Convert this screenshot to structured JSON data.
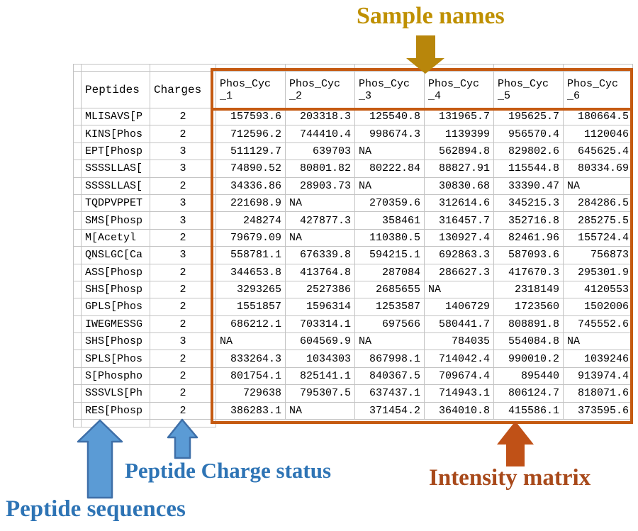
{
  "annotations": {
    "sample_names": "Sample names",
    "peptide_charge_status": "Peptide Charge status",
    "peptide_sequences": "Peptide sequences",
    "intensity_matrix": "Intensity matrix"
  },
  "colors": {
    "sample_names_text": "#BF9000",
    "gold_arrow": "#B8860B",
    "header_highlight_bg": "#FFFF00",
    "left_header_bg": "#9FC3E6",
    "matrix_outline": "#C55A11",
    "blue_arrow_fill": "#5B9BD5",
    "blue_arrow_outline": "#3E6FA8",
    "blue_label_text": "#2E74B5",
    "intensity_label_text": "#A8491A",
    "orange_arrow_fill": "#C05117",
    "grid_line": "#C3C3C3"
  },
  "table": {
    "corner_headers": [
      "Peptides",
      "Charges"
    ],
    "sample_headers": [
      {
        "top": "Phos_Cyc",
        "bottom": "_1"
      },
      {
        "top": "Phos_Cyc",
        "bottom": "_2"
      },
      {
        "top": "Phos_Cyc",
        "bottom": "_3"
      },
      {
        "top": "Phos_Cyc",
        "bottom": "_4"
      },
      {
        "top": "Phos_Cyc",
        "bottom": "_5"
      },
      {
        "top": "Phos_Cyc",
        "bottom": "_6"
      }
    ],
    "rows": [
      {
        "peptide": "MLISAVS[P",
        "charge": "2",
        "values": [
          "157593.6",
          "203318.3",
          "125540.8",
          "131965.7",
          "195625.7",
          "180664.5"
        ]
      },
      {
        "peptide": "KINS[Phos",
        "charge": "2",
        "values": [
          "712596.2",
          "744410.4",
          "998674.3",
          "1139399",
          "956570.4",
          "1120046"
        ]
      },
      {
        "peptide": "EPT[Phosp",
        "charge": "3",
        "values": [
          "511129.7",
          "639703",
          "NA",
          "562894.8",
          "829802.6",
          "645625.4"
        ]
      },
      {
        "peptide": "SSSSLLAS[",
        "charge": "3",
        "values": [
          "74890.52",
          "80801.82",
          "80222.84",
          "88827.91",
          "115544.8",
          "80334.69"
        ]
      },
      {
        "peptide": "SSSSLLAS[",
        "charge": "2",
        "values": [
          "34336.86",
          "28903.73",
          "NA",
          "30830.68",
          "33390.47",
          "NA"
        ]
      },
      {
        "peptide": "TQDPVPPET",
        "charge": "3",
        "values": [
          "221698.9",
          "NA",
          "270359.6",
          "312614.6",
          "345215.3",
          "284286.5"
        ]
      },
      {
        "peptide": "SMS[Phosp",
        "charge": "3",
        "values": [
          "248274",
          "427877.3",
          "358461",
          "316457.7",
          "352716.8",
          "285275.5"
        ]
      },
      {
        "peptide": "M[Acetyl",
        "charge": "2",
        "values": [
          "79679.09",
          "NA",
          "110380.5",
          "130927.4",
          "82461.96",
          "155724.4"
        ]
      },
      {
        "peptide": "QNSLGC[Ca",
        "charge": "3",
        "values": [
          "558781.1",
          "676339.8",
          "594215.1",
          "692863.3",
          "587093.6",
          "756873"
        ]
      },
      {
        "peptide": "ASS[Phosp",
        "charge": "2",
        "values": [
          "344653.8",
          "413764.8",
          "287084",
          "286627.3",
          "417670.3",
          "295301.9"
        ]
      },
      {
        "peptide": "SHS[Phosp",
        "charge": "2",
        "values": [
          "3293265",
          "2527386",
          "2685655",
          "NA",
          "2318149",
          "4120553"
        ]
      },
      {
        "peptide": "GPLS[Phos",
        "charge": "2",
        "values": [
          "1551857",
          "1596314",
          "1253587",
          "1406729",
          "1723560",
          "1502006"
        ]
      },
      {
        "peptide": "IWEGMESSG",
        "charge": "2",
        "values": [
          "686212.1",
          "703314.1",
          "697566",
          "580441.7",
          "808891.8",
          "745552.6"
        ]
      },
      {
        "peptide": "SHS[Phosp",
        "charge": "3",
        "values": [
          "NA",
          "604569.9",
          "NA",
          "784035",
          "554084.8",
          "NA"
        ]
      },
      {
        "peptide": "SPLS[Phos",
        "charge": "2",
        "values": [
          "833264.3",
          "1034303",
          "867998.1",
          "714042.4",
          "990010.2",
          "1039246"
        ]
      },
      {
        "peptide": "S[Phospho",
        "charge": "2",
        "values": [
          "801754.1",
          "825141.1",
          "840367.5",
          "709674.4",
          "895440",
          "913974.4"
        ]
      },
      {
        "peptide": "SSSVLS[Ph",
        "charge": "2",
        "values": [
          "729638",
          "795307.5",
          "637437.1",
          "714943.1",
          "806124.7",
          "818071.6"
        ]
      },
      {
        "peptide": "RES[Phosp",
        "charge": "2",
        "values": [
          "386283.1",
          "NA",
          "371454.2",
          "364010.8",
          "415586.1",
          "373595.6"
        ]
      }
    ]
  }
}
